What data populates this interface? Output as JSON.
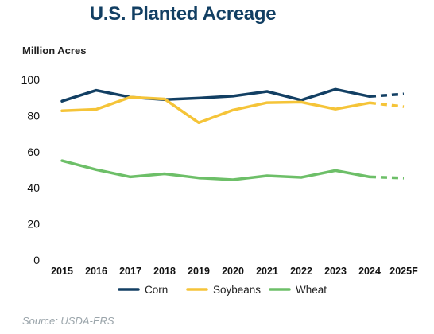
{
  "chart_data": {
    "type": "line",
    "title": "U.S. Planted Acreage",
    "ylabel": "Million Acres",
    "xlabel": "",
    "source": "Source: USDA-ERS",
    "categories": [
      "2015",
      "2016",
      "2017",
      "2018",
      "2019",
      "2020",
      "2021",
      "2022",
      "2023",
      "2024",
      "2025F"
    ],
    "ylim": [
      0,
      100
    ],
    "yticks": [
      0,
      20,
      40,
      60,
      80,
      100
    ],
    "grid": false,
    "legend_position": "bottom",
    "projected_from_index": 9,
    "series": [
      {
        "name": "Corn",
        "color": "#123f63",
        "values": [
          88.0,
          94.0,
          90.2,
          88.9,
          89.7,
          90.8,
          93.4,
          88.6,
          94.6,
          90.6,
          92.0
        ]
      },
      {
        "name": "Soybeans",
        "color": "#f5c438",
        "values": [
          82.7,
          83.5,
          90.2,
          89.2,
          76.1,
          83.1,
          87.2,
          87.5,
          83.6,
          87.1,
          85.0
        ]
      },
      {
        "name": "Wheat",
        "color": "#6dbf68",
        "values": [
          55.0,
          50.1,
          46.1,
          47.8,
          45.5,
          44.5,
          46.7,
          45.8,
          49.6,
          46.1,
          45.4
        ]
      }
    ]
  }
}
